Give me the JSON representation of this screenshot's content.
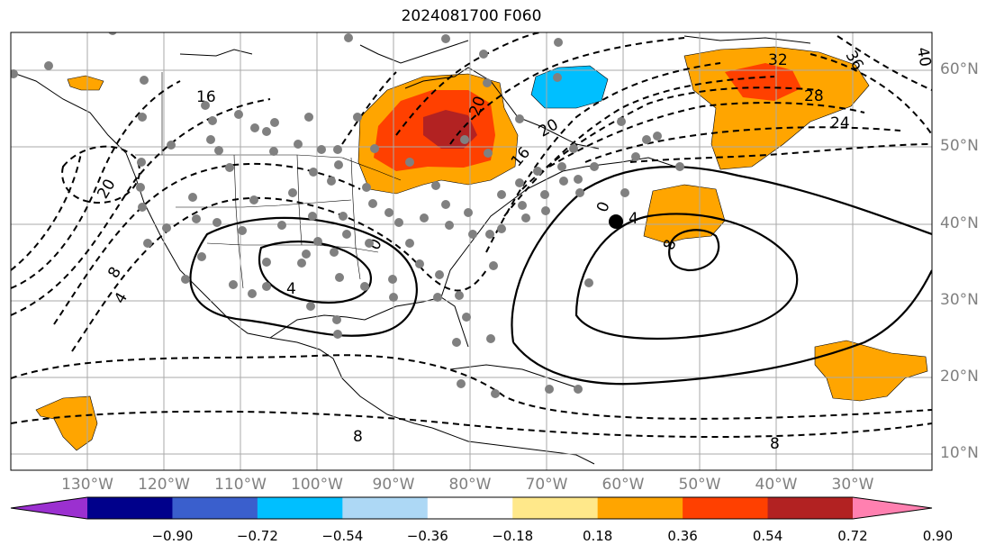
{
  "title": "2024081700 F060",
  "lat_labels": [
    "60°N",
    "50°N",
    "40°N",
    "30°N",
    "20°N",
    "10°N"
  ],
  "lon_labels": [
    "130°W",
    "120°W",
    "110°W",
    "100°W",
    "90°W",
    "80°W",
    "70°W",
    "60°W",
    "50°W",
    "40°W",
    "30°W"
  ],
  "contour_labels": [
    "16",
    "20",
    "16",
    "20",
    "32",
    "28",
    "24",
    "36",
    "40",
    "20",
    "8",
    "4",
    "0",
    "4",
    "0",
    "4",
    "8",
    "8"
  ],
  "colorbar": {
    "ticks": [
      "−0.90",
      "−0.72",
      "−0.54",
      "−0.36",
      "−0.18",
      "0.18",
      "0.36",
      "0.54",
      "0.72",
      "0.90"
    ],
    "colors": [
      "#9b30d0",
      "#00008b",
      "#3a5fcd",
      "#00bfff",
      "#add8f5",
      "#ffffff",
      "#ffe88a",
      "#ffa500",
      "#ff4000",
      "#b22222",
      "#ff80b0"
    ]
  }
}
